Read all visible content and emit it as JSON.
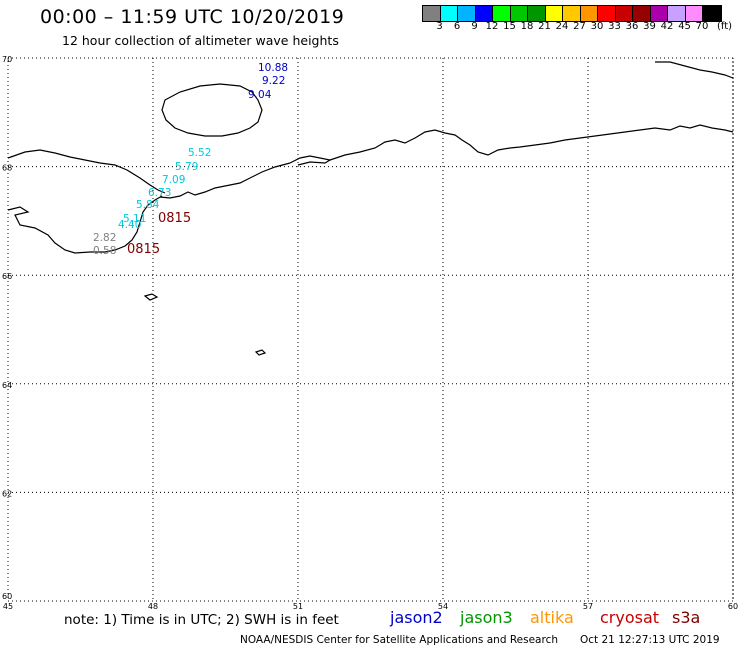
{
  "header": {
    "title": "00:00 – 11:59 UTC 10/20/2019",
    "subtitle": "12 hour collection of altimeter wave heights"
  },
  "colorbar": {
    "colors": [
      "#808080",
      "#00ffff",
      "#00b4ff",
      "#0000ff",
      "#00ff00",
      "#00c800",
      "#009600",
      "#ffff00",
      "#ffc800",
      "#ff9600",
      "#ff0000",
      "#c80000",
      "#960000",
      "#aa00aa",
      "#c8a0ff",
      "#ff8cff",
      "#000000"
    ],
    "labels": [
      "3",
      "6",
      "9",
      "12",
      "15",
      "18",
      "21",
      "24",
      "27",
      "30",
      "33",
      "36",
      "39",
      "42",
      "45",
      "70"
    ],
    "unit": "(ft)"
  },
  "map": {
    "lat_labels": [
      "70",
      "68",
      "66",
      "64",
      "62",
      "60"
    ],
    "lon_labels": [
      "45",
      "48",
      "51",
      "54",
      "57",
      "60"
    ],
    "gridline_lons": [
      48,
      51,
      54,
      57,
      60
    ],
    "gridline_lats": [
      62,
      64,
      66,
      68,
      70
    ],
    "lon_range": [
      45,
      60
    ],
    "lat_range": [
      60,
      70
    ],
    "wave_heights": [
      {
        "value": "10.88",
        "color": "#0000c8"
      },
      {
        "value": "9.22",
        "color": "#0000c8"
      },
      {
        "value": "9.04",
        "color": "#0000c8"
      },
      {
        "value": "5.52",
        "color": "#00c8dc"
      },
      {
        "value": "5.79",
        "color": "#00c8dc"
      },
      {
        "value": "7.09",
        "color": "#00c8dc"
      },
      {
        "value": "6.73",
        "color": "#00c8dc"
      },
      {
        "value": "5.84",
        "color": "#00c8dc"
      },
      {
        "value": "5.11",
        "color": "#00c8dc"
      },
      {
        "value": "4.40",
        "color": "#00c8dc"
      },
      {
        "value": "2.82",
        "color": "#808080"
      },
      {
        "value": "0.58",
        "color": "#808080"
      }
    ],
    "pass_times": [
      {
        "value": "0815",
        "color": "#800000"
      },
      {
        "value": "0815",
        "color": "#800000"
      }
    ]
  },
  "footer": {
    "note": "note:  1) Time is in UTC;  2) SWH is in feet",
    "satellites": [
      {
        "name": "jason2",
        "color": "#0000c8"
      },
      {
        "name": "jason3",
        "color": "#009600"
      },
      {
        "name": "altika",
        "color": "#ff9600"
      },
      {
        "name": "cryosat",
        "color": "#c80000"
      },
      {
        "name": "s3a",
        "color": "#800000"
      }
    ],
    "credit": "NOAA/NESDIS Center for Satellite Applications and Research",
    "timestamp": "Oct 21 12:27:13 UTC 2019"
  }
}
